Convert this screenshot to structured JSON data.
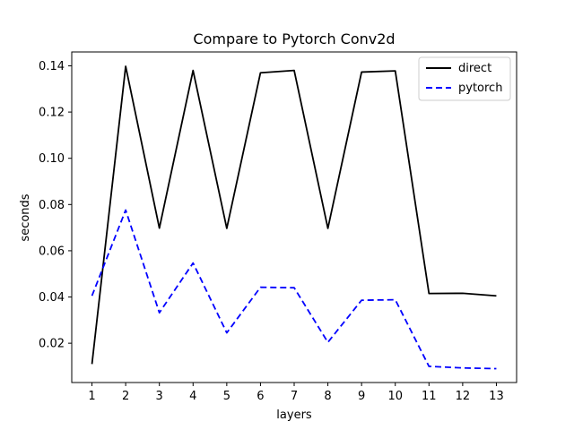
{
  "chart_data": {
    "type": "line",
    "title": "Compare to Pytorch Conv2d",
    "xlabel": "layers",
    "ylabel": "seconds",
    "x": [
      1,
      2,
      3,
      4,
      5,
      6,
      7,
      8,
      9,
      10,
      11,
      12,
      13
    ],
    "xticks": [
      "1",
      "2",
      "3",
      "4",
      "5",
      "6",
      "7",
      "8",
      "9",
      "10",
      "11",
      "12",
      "13"
    ],
    "yticks": [
      "0.02",
      "0.04",
      "0.06",
      "0.08",
      "0.10",
      "0.12",
      "0.14"
    ],
    "ylim": [
      0.003,
      0.146
    ],
    "xlim": [
      0.4,
      13.6
    ],
    "grid": false,
    "legend_position": "top-right",
    "series": [
      {
        "name": "direct",
        "color": "#000000",
        "style": "solid",
        "values": [
          0.011,
          0.1398,
          0.0698,
          0.138,
          0.0697,
          0.137,
          0.138,
          0.0697,
          0.1373,
          0.1378,
          0.0415,
          0.0416,
          0.0405
        ]
      },
      {
        "name": "pytorch",
        "color": "#0000ff",
        "style": "dashed",
        "values": [
          0.0405,
          0.0776,
          0.0332,
          0.0547,
          0.0245,
          0.0442,
          0.044,
          0.0204,
          0.0386,
          0.0388,
          0.01,
          0.0093,
          0.009
        ]
      }
    ]
  }
}
